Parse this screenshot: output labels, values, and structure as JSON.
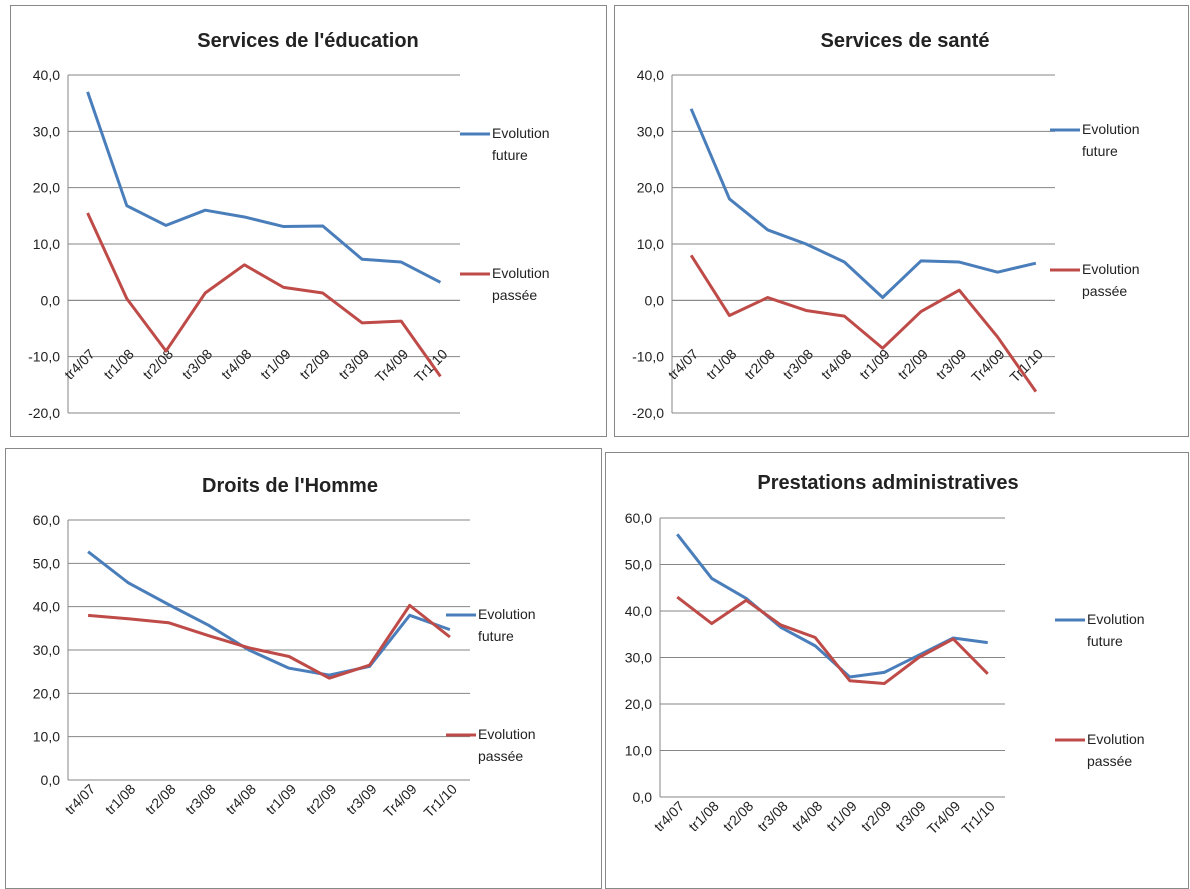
{
  "chart_data": [
    {
      "type": "line",
      "title": "Services de l'éducation",
      "categories": [
        "tr4/07",
        "tr1/08",
        "tr2/08",
        "tr3/08",
        "tr4/08",
        "tr1/09",
        "tr2/09",
        "tr3/09",
        "Tr4/09",
        "Tr1/10"
      ],
      "series": [
        {
          "name": "Evolution future",
          "color": "#4a7ebb",
          "values": [
            37.0,
            16.8,
            13.3,
            16.0,
            14.8,
            13.1,
            13.2,
            7.3,
            6.8,
            3.2
          ]
        },
        {
          "name": "Evolution passée",
          "color": "#be4b48",
          "values": [
            15.5,
            0.3,
            -9.0,
            1.3,
            6.3,
            2.3,
            1.3,
            -4.0,
            -3.7,
            -13.5
          ]
        }
      ],
      "ylim": [
        -20,
        40
      ],
      "yticks": [
        {
          "value": -20,
          "label": "-20,0"
        },
        {
          "value": -10,
          "label": "-10,0"
        },
        {
          "value": 0,
          "label": "0,0"
        },
        {
          "value": 10,
          "label": "10,0"
        },
        {
          "value": 20,
          "label": "20,0"
        },
        {
          "value": 30,
          "label": "30,0"
        },
        {
          "value": 40,
          "label": "40,0"
        }
      ],
      "grid": true
    },
    {
      "type": "line",
      "title": "Services de santé",
      "categories": [
        "tr4/07",
        "tr1/08",
        "tr2/08",
        "tr3/08",
        "tr4/08",
        "tr1/09",
        "tr2/09",
        "tr3/09",
        "Tr4/09",
        "Tr1/10"
      ],
      "series": [
        {
          "name": "Evolution future",
          "color": "#4a7ebb",
          "values": [
            34.0,
            18.0,
            12.5,
            10.0,
            6.8,
            0.5,
            7.0,
            6.8,
            5.0,
            6.6
          ]
        },
        {
          "name": "Evolution passée",
          "color": "#be4b48",
          "values": [
            8.0,
            -2.7,
            0.5,
            -1.8,
            -2.8,
            -8.5,
            -2.0,
            1.8,
            -6.5,
            -16.2
          ]
        }
      ],
      "ylim": [
        -20,
        40
      ],
      "yticks": [
        {
          "value": -20,
          "label": "-20,0"
        },
        {
          "value": -10,
          "label": "-10,0"
        },
        {
          "value": 0,
          "label": "0,0"
        },
        {
          "value": 10,
          "label": "10,0"
        },
        {
          "value": 20,
          "label": "20,0"
        },
        {
          "value": 30,
          "label": "30,0"
        },
        {
          "value": 40,
          "label": "40,0"
        }
      ],
      "grid": true
    },
    {
      "type": "line",
      "title": "Droits de l'Homme",
      "categories": [
        "tr4/07",
        "tr1/08",
        "tr2/08",
        "tr3/08",
        "tr4/08",
        "tr1/09",
        "tr2/09",
        "tr3/09",
        "Tr4/09",
        "Tr1/10"
      ],
      "series": [
        {
          "name": "Evolution future",
          "color": "#4a7ebb",
          "values": [
            52.7,
            45.5,
            40.5,
            35.7,
            30.0,
            25.8,
            24.2,
            26.2,
            38.0,
            34.7
          ]
        },
        {
          "name": "Evolution passée",
          "color": "#be4b48",
          "values": [
            38.0,
            37.2,
            36.3,
            33.3,
            30.5,
            28.5,
            23.5,
            26.5,
            40.3,
            33.0
          ]
        }
      ],
      "ylim": [
        0,
        60
      ],
      "yticks": [
        {
          "value": 0,
          "label": "0,0"
        },
        {
          "value": 10,
          "label": "10,0"
        },
        {
          "value": 20,
          "label": "20,0"
        },
        {
          "value": 30,
          "label": "30,0"
        },
        {
          "value": 40,
          "label": "40,0"
        },
        {
          "value": 50,
          "label": "50,0"
        },
        {
          "value": 60,
          "label": "60,0"
        }
      ],
      "grid": true
    },
    {
      "type": "line",
      "title": "Prestations administratives",
      "categories": [
        "tr4/07",
        "tr1/08",
        "tr2/08",
        "tr3/08",
        "tr4/08",
        "tr1/09",
        "tr2/09",
        "tr3/09",
        "Tr4/09",
        "Tr1/10"
      ],
      "series": [
        {
          "name": "Evolution future",
          "color": "#4a7ebb",
          "values": [
            56.5,
            47.0,
            42.7,
            36.5,
            32.5,
            25.8,
            26.8,
            30.5,
            34.2,
            33.2
          ]
        },
        {
          "name": "Evolution passée",
          "color": "#be4b48",
          "values": [
            43.0,
            37.3,
            42.3,
            37.0,
            34.3,
            25.0,
            24.4,
            30.0,
            34.0,
            26.5
          ]
        }
      ],
      "ylim": [
        0,
        60
      ],
      "yticks": [
        {
          "value": 0,
          "label": "0,0"
        },
        {
          "value": 10,
          "label": "10,0"
        },
        {
          "value": 20,
          "label": "20,0"
        },
        {
          "value": 30,
          "label": "30,0"
        },
        {
          "value": 40,
          "label": "40,0"
        },
        {
          "value": 50,
          "label": "50,0"
        },
        {
          "value": 60,
          "label": "60,0"
        }
      ],
      "grid": true
    }
  ]
}
